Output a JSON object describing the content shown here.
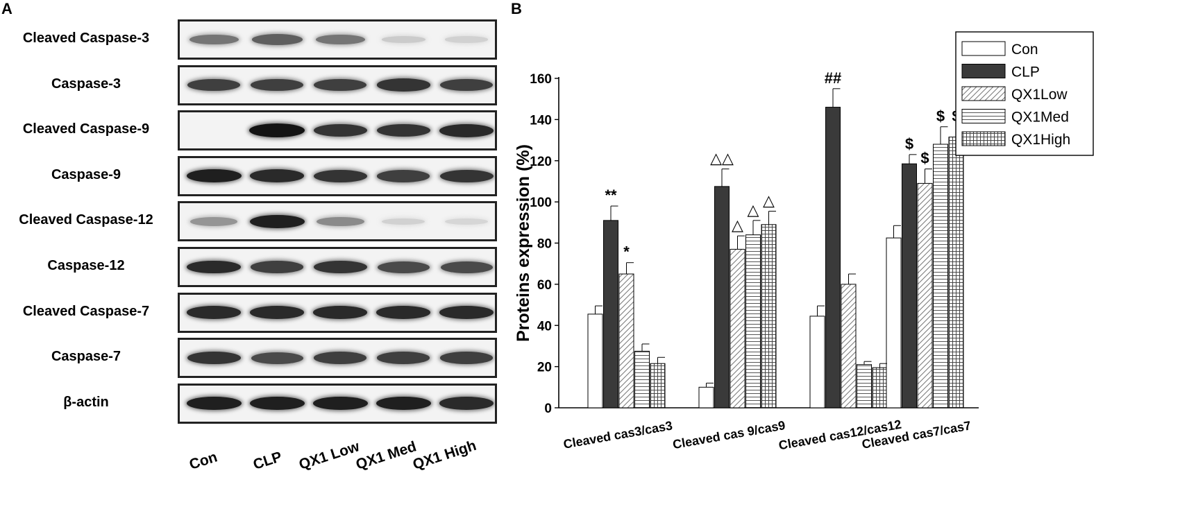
{
  "panel_a": {
    "letter": "A",
    "rows": [
      {
        "label": "Cleaved Caspase-3",
        "intensity": [
          0.55,
          0.65,
          0.55,
          0.15,
          0.12
        ]
      },
      {
        "label": "Caspase-3",
        "intensity": [
          0.8,
          0.8,
          0.8,
          0.85,
          0.8
        ]
      },
      {
        "label": "Cleaved Caspase-9",
        "intensity": [
          0.0,
          1.0,
          0.85,
          0.85,
          0.9
        ]
      },
      {
        "label": "Caspase-9",
        "intensity": [
          0.95,
          0.9,
          0.85,
          0.8,
          0.85
        ]
      },
      {
        "label": "Cleaved Caspase-12",
        "intensity": [
          0.4,
          0.95,
          0.45,
          0.12,
          0.1
        ]
      },
      {
        "label": "Caspase-12",
        "intensity": [
          0.9,
          0.8,
          0.85,
          0.75,
          0.75
        ]
      },
      {
        "label": "Cleaved Caspase-7",
        "intensity": [
          0.9,
          0.9,
          0.9,
          0.9,
          0.9
        ]
      },
      {
        "label": "Caspase-7",
        "intensity": [
          0.85,
          0.75,
          0.8,
          0.8,
          0.8
        ]
      },
      {
        "label": "β-actin",
        "intensity": [
          0.95,
          0.95,
          0.95,
          0.95,
          0.9
        ]
      }
    ],
    "lanes": [
      "Con",
      "CLP",
      "QX1 Low",
      "QX1 Med",
      "QX1 High"
    ]
  },
  "chart_data": {
    "type": "bar",
    "panel_letter": "B",
    "ylabel": "Proteins expression (%)",
    "ylim": [
      0,
      160
    ],
    "yticks": [
      0,
      20,
      40,
      60,
      80,
      100,
      120,
      140,
      160
    ],
    "legend_position": "top-right",
    "categories": [
      "Cleaved cas3/cas3",
      "Cleaved cas 9/cas9",
      "Cleaved cas12/cas12",
      "Cleaved cas7/cas7"
    ],
    "series": [
      {
        "name": "Con",
        "pattern": "white",
        "values": [
          45.5,
          10,
          44.5,
          82.5
        ],
        "errors": [
          4,
          2,
          5,
          6
        ]
      },
      {
        "name": "CLP",
        "pattern": "solid",
        "values": [
          91,
          107.5,
          146,
          118.5
        ],
        "errors": [
          7,
          8.5,
          9,
          4.5
        ]
      },
      {
        "name": "QX1Low",
        "pattern": "diagonal",
        "values": [
          65,
          77,
          60,
          109
        ],
        "errors": [
          5.5,
          6.5,
          5,
          7
        ]
      },
      {
        "name": "QX1Med",
        "pattern": "horizontal",
        "values": [
          27.5,
          84,
          21,
          128
        ],
        "errors": [
          3.5,
          7,
          1.5,
          8.5
        ]
      },
      {
        "name": "QX1High",
        "pattern": "grid",
        "values": [
          21.5,
          89,
          19.5,
          131.5
        ],
        "errors": [
          3,
          6.5,
          2,
          5
        ]
      }
    ],
    "annotations": [
      {
        "category": 0,
        "series": 1,
        "text": "**"
      },
      {
        "category": 0,
        "series": 2,
        "text": "*"
      },
      {
        "category": 1,
        "series": 1,
        "text": "△△"
      },
      {
        "category": 1,
        "series": 2,
        "text": "△"
      },
      {
        "category": 1,
        "series": 3,
        "text": "△"
      },
      {
        "category": 1,
        "series": 4,
        "text": "△"
      },
      {
        "category": 2,
        "series": 1,
        "text": "##"
      },
      {
        "category": 3,
        "series": 1,
        "text": "$"
      },
      {
        "category": 3,
        "series": 2,
        "text": "$"
      },
      {
        "category": 3,
        "series": 3,
        "text": "$"
      },
      {
        "category": 3,
        "series": 4,
        "text": "$"
      }
    ]
  }
}
